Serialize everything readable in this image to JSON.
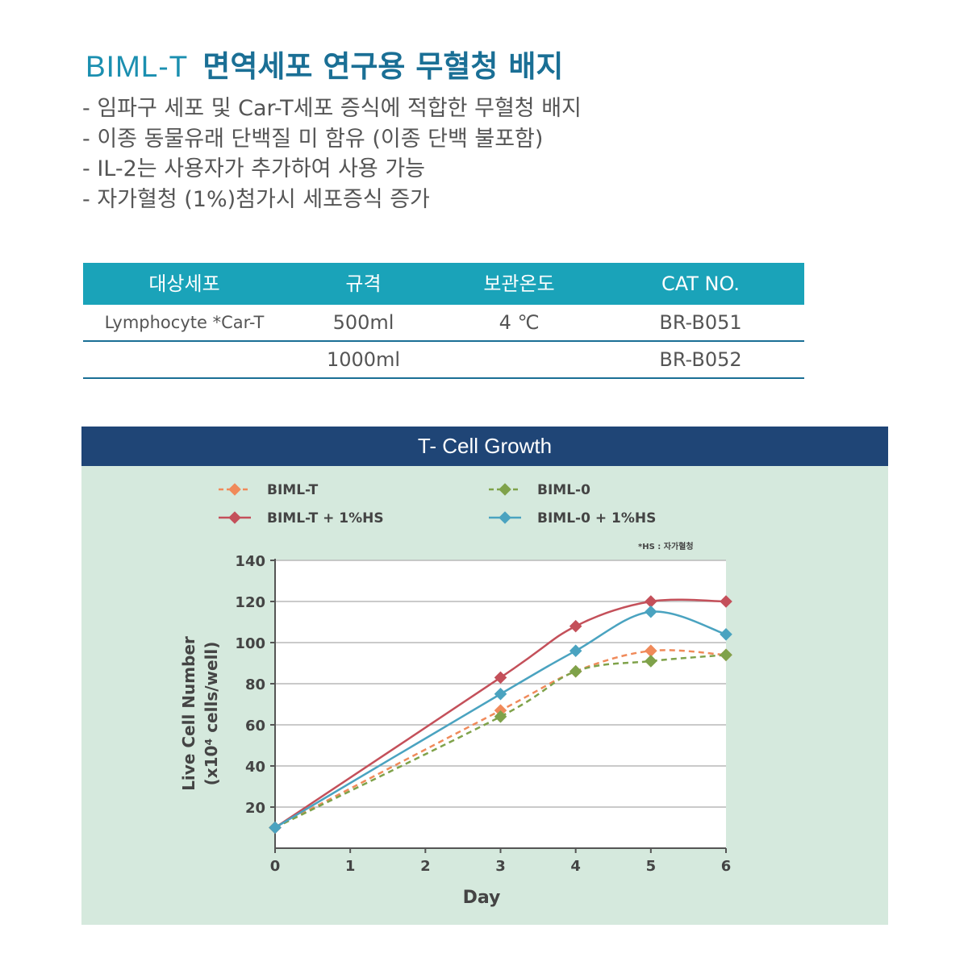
{
  "header": {
    "brand": "BIML-T",
    "subtitle": "면역세포 연구용 무혈청 배지"
  },
  "bullets": [
    "- 임파구 세포 및 Car-T세포 증식에 적합한 무혈청 배지",
    "- 이종 동물유래 단백질 미 함유 (이종 단백 불포함)",
    "- IL-2는 사용자가 추가하여 사용 가능",
    "- 자가혈청 (1%)첨가시 세포증식 증가"
  ],
  "spec_table": {
    "headers": [
      "대상세포",
      "규격",
      "보관온도",
      "CAT NO."
    ],
    "rows": [
      [
        "Lymphocyte *Car-T",
        "500ml",
        "4 ℃",
        "BR-B051"
      ],
      [
        "",
        "1000ml",
        "",
        "BR-B052"
      ]
    ]
  },
  "colors": {
    "brand": "#1b8fb0",
    "table_header": "#1aa3b9",
    "panel_header": "#1f4576",
    "panel_bg": "#d5e9dd",
    "plot_bg": "#ffffff"
  },
  "chart_data": {
    "type": "line",
    "title": "T- Cell Growth",
    "xlabel": "Day",
    "ylabel_line1": "Live Cell  Number",
    "ylabel_line2": "(x10⁴ cells/well)",
    "note": "*HS : 자가혈청",
    "xlim": [
      0,
      6
    ],
    "ylim": [
      0,
      140
    ],
    "x_ticks": [
      0,
      1,
      2,
      3,
      4,
      5,
      6
    ],
    "y_ticks": [
      20,
      40,
      60,
      80,
      100,
      120,
      140
    ],
    "grid": true,
    "legend_position": "top",
    "series": [
      {
        "name": "BIML-T",
        "color": "#f08a5a",
        "dashed": true,
        "x": [
          0,
          3,
          4,
          5,
          6
        ],
        "y": [
          10,
          67,
          86,
          96,
          94
        ]
      },
      {
        "name": "BIML-0",
        "color": "#7fa24a",
        "dashed": true,
        "x": [
          0,
          3,
          4,
          5,
          6
        ],
        "y": [
          10,
          64,
          86,
          91,
          94
        ]
      },
      {
        "name": "BIML-T + 1%HS",
        "color": "#c4505a",
        "dashed": false,
        "x": [
          0,
          3,
          4,
          5,
          6
        ],
        "y": [
          10,
          83,
          108,
          120,
          120
        ]
      },
      {
        "name": "BIML-0 + 1%HS",
        "color": "#4aa3c0",
        "dashed": false,
        "x": [
          0,
          3,
          4,
          5,
          6
        ],
        "y": [
          10,
          75,
          96,
          115,
          104
        ]
      }
    ]
  }
}
